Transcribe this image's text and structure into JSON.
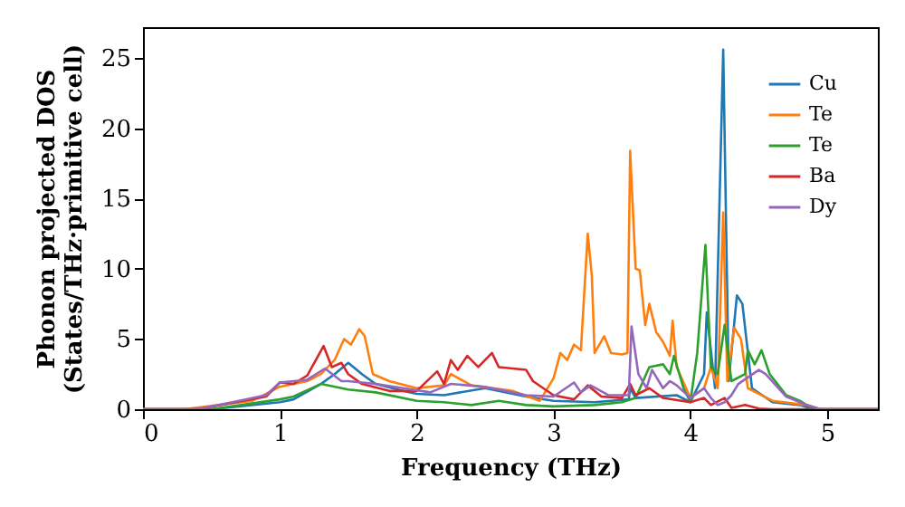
{
  "chart_data": {
    "type": "line",
    "xlabel": "Frequency (THz)",
    "ylabel": "Phonon projected DOS\n(States/THz·primitive cell)",
    "xlim": [
      0,
      5.37
    ],
    "ylim": [
      0,
      27.2
    ],
    "xticks": [
      0,
      1,
      2,
      3,
      4,
      5
    ],
    "yticks": [
      0,
      5,
      10,
      15,
      20,
      25
    ],
    "grid": false,
    "legend": "top right",
    "line_style": "solid",
    "series": [
      {
        "name": "Cu",
        "color": "#1f77b4",
        "x": [
          0,
          0.5,
          1.0,
          1.1,
          1.3,
          1.4,
          1.5,
          1.6,
          1.7,
          1.9,
          2.0,
          2.2,
          2.5,
          2.8,
          3.0,
          3.3,
          3.55,
          3.56,
          3.6,
          3.9,
          4.0,
          4.1,
          4.12,
          4.18,
          4.24,
          4.28,
          4.34,
          4.38,
          4.45,
          4.6,
          4.8,
          4.9,
          5.37
        ],
        "values": [
          0,
          0,
          0.5,
          0.7,
          1.8,
          2.5,
          3.3,
          2.5,
          1.8,
          1.3,
          1.1,
          1.0,
          1.5,
          0.9,
          0.6,
          0.5,
          0.7,
          1.5,
          0.8,
          1.0,
          0.5,
          2.5,
          6.9,
          1.5,
          25.6,
          2.0,
          8.1,
          7.5,
          1.5,
          0.5,
          0.3,
          0,
          0
        ]
      },
      {
        "name": "Te",
        "color": "#ff7f0e",
        "x": [
          0,
          0.3,
          0.8,
          1.0,
          1.2,
          1.3,
          1.4,
          1.47,
          1.52,
          1.58,
          1.62,
          1.68,
          1.8,
          2.0,
          2.2,
          2.25,
          2.4,
          2.7,
          2.9,
          3.0,
          3.05,
          3.1,
          3.15,
          3.2,
          3.25,
          3.28,
          3.3,
          3.37,
          3.42,
          3.5,
          3.54,
          3.56,
          3.6,
          3.63,
          3.67,
          3.7,
          3.75,
          3.8,
          3.85,
          3.87,
          3.9,
          4.0,
          4.1,
          4.15,
          4.2,
          4.24,
          4.27,
          4.32,
          4.37,
          4.42,
          4.6,
          4.85,
          4.95,
          5.37
        ],
        "values": [
          0,
          0,
          0.6,
          1.6,
          2.0,
          2.5,
          3.5,
          5.0,
          4.6,
          5.7,
          5.2,
          2.5,
          2.0,
          1.5,
          1.7,
          2.5,
          1.7,
          1.3,
          0.6,
          2.2,
          4.0,
          3.5,
          4.6,
          4.2,
          12.5,
          9.5,
          4.0,
          5.2,
          4.0,
          3.9,
          4.0,
          18.4,
          10,
          9.9,
          6.0,
          7.5,
          5.5,
          4.8,
          3.8,
          6.3,
          3.0,
          0.8,
          1.5,
          3.0,
          1.5,
          14.0,
          2.0,
          5.8,
          5.0,
          1.5,
          0.6,
          0.3,
          0,
          0
        ]
      },
      {
        "name": "Te",
        "color": "#2ca02c",
        "x": [
          0,
          0.5,
          1.0,
          1.1,
          1.3,
          1.5,
          1.7,
          2.0,
          2.2,
          2.4,
          2.6,
          2.8,
          3.0,
          3.3,
          3.5,
          3.6,
          3.7,
          3.8,
          3.85,
          3.88,
          3.95,
          4.0,
          4.05,
          4.11,
          4.15,
          4.2,
          4.25,
          4.3,
          4.4,
          4.42,
          4.47,
          4.52,
          4.58,
          4.7,
          4.8,
          4.9,
          5.37
        ],
        "values": [
          0,
          0,
          0.7,
          0.9,
          1.8,
          1.4,
          1.2,
          0.6,
          0.5,
          0.3,
          0.6,
          0.3,
          0.2,
          0.3,
          0.5,
          0.8,
          3.0,
          3.2,
          2.5,
          3.8,
          1.5,
          0.5,
          4.0,
          11.7,
          3.0,
          2.5,
          6.0,
          2.0,
          2.5,
          4.2,
          3.2,
          4.2,
          2.5,
          1.0,
          0.6,
          0,
          0
        ]
      },
      {
        "name": "Ba",
        "color": "#d62728",
        "x": [
          0,
          0.4,
          0.9,
          1.0,
          1.1,
          1.2,
          1.32,
          1.38,
          1.45,
          1.5,
          1.6,
          1.8,
          2.0,
          2.15,
          2.2,
          2.25,
          2.3,
          2.37,
          2.45,
          2.55,
          2.6,
          2.8,
          2.85,
          3.0,
          3.15,
          3.25,
          3.35,
          3.5,
          3.56,
          3.6,
          3.7,
          3.8,
          4.0,
          4.1,
          4.15,
          4.25,
          4.3,
          4.4,
          4.5,
          4.6,
          5.37
        ],
        "values": [
          0,
          0,
          0.9,
          1.9,
          1.8,
          2.4,
          4.5,
          3.0,
          3.3,
          2.5,
          1.8,
          1.3,
          1.3,
          2.7,
          1.8,
          3.5,
          2.8,
          3.8,
          3.0,
          4.0,
          3.0,
          2.8,
          2.0,
          1.0,
          0.7,
          1.7,
          0.9,
          0.8,
          1.8,
          1.0,
          1.5,
          0.8,
          0.5,
          0.8,
          0.3,
          0.8,
          0.1,
          0.3,
          0.05,
          0,
          0
        ]
      },
      {
        "name": "Dy",
        "color": "#9467bd",
        "x": [
          0,
          0.4,
          0.9,
          1.0,
          1.2,
          1.33,
          1.45,
          1.5,
          1.7,
          1.9,
          2.1,
          2.25,
          2.5,
          2.8,
          3.0,
          3.15,
          3.2,
          3.27,
          3.4,
          3.55,
          3.57,
          3.62,
          3.68,
          3.72,
          3.8,
          3.85,
          3.9,
          4.0,
          4.1,
          4.15,
          4.2,
          4.25,
          4.3,
          4.35,
          4.5,
          4.55,
          4.7,
          4.85,
          4.95,
          5.37
        ],
        "values": [
          0,
          0,
          1.0,
          1.9,
          2.1,
          2.9,
          2.0,
          2.0,
          1.8,
          1.5,
          1.2,
          1.8,
          1.6,
          1.0,
          0.9,
          1.9,
          1.2,
          1.7,
          1.0,
          1.0,
          5.9,
          2.5,
          1.5,
          2.8,
          1.5,
          2.0,
          1.7,
          0.8,
          1.5,
          0.8,
          0.3,
          0.5,
          1.0,
          1.8,
          2.8,
          2.5,
          0.9,
          0.3,
          0,
          0
        ]
      }
    ]
  }
}
